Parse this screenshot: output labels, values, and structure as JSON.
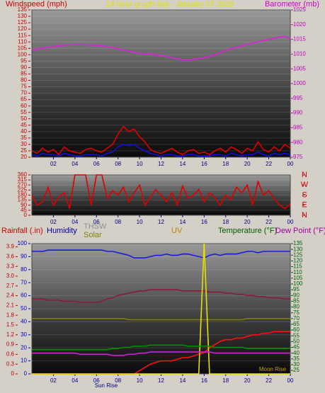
{
  "chart_data": [
    {
      "type": "line",
      "title": "24 hour graph day - January 07 2026",
      "ylabel": "Windspeed (mph)",
      "y2label": "Barometer (mb)",
      "x": [
        0,
        0.5,
        1,
        1.5,
        2,
        2.5,
        3,
        3.5,
        4,
        4.5,
        5,
        5.5,
        6,
        6.5,
        7,
        7.5,
        8,
        8.5,
        9,
        9.5,
        10,
        10.5,
        11,
        11.5,
        12,
        12.5,
        13,
        13.5,
        14,
        14.5,
        15,
        15.5,
        16,
        16.5,
        17,
        17.5,
        18,
        18.5,
        19,
        19.5,
        20,
        20.5,
        21,
        21.5,
        22,
        22.5,
        23,
        23.5,
        24
      ],
      "xlim": [
        0,
        24
      ],
      "xticks": [
        {
          "value": 2,
          "label": "02"
        },
        {
          "value": 4,
          "label": "04"
        },
        {
          "value": 6,
          "label": "06"
        },
        {
          "value": 8,
          "label": "08"
        },
        10,
        12,
        14,
        16,
        18,
        20,
        22,
        {
          "value": 24,
          "label": "00"
        }
      ],
      "ylim": [
        20,
        135
      ],
      "yticks": [
        20,
        25,
        30,
        35,
        40,
        45,
        50,
        55,
        60,
        65,
        70,
        75,
        80,
        85,
        90,
        95,
        100,
        105,
        110,
        115,
        120,
        125,
        130,
        135
      ],
      "y2lim": [
        975,
        1025
      ],
      "y2ticks": [
        975,
        980,
        985,
        990,
        995,
        1000,
        1005,
        1010,
        1015,
        1020,
        1025
      ],
      "grid": true,
      "series": [
        {
          "color": "#e00000",
          "values": [
            25,
            23,
            27,
            24,
            26,
            22,
            28,
            25,
            24,
            23,
            26,
            27,
            25,
            24,
            27,
            30,
            38,
            44,
            40,
            42,
            36,
            32,
            26,
            24,
            23,
            25,
            27,
            24,
            22,
            25,
            26,
            23,
            24,
            22,
            25,
            27,
            24,
            28,
            26,
            23,
            27,
            25,
            32,
            26,
            24,
            28,
            25,
            30,
            27
          ]
        },
        {
          "color": "#1010e0",
          "values": [
            22,
            21,
            23,
            22,
            22,
            21,
            23,
            22,
            21,
            21,
            22,
            22,
            22,
            21,
            23,
            24,
            28,
            30,
            29,
            30,
            27,
            25,
            23,
            22,
            21,
            22,
            22,
            21,
            21,
            22,
            22,
            21,
            21,
            21,
            22,
            22,
            21,
            23,
            22,
            21,
            22,
            22,
            24,
            22,
            21,
            23,
            22,
            23,
            22
          ]
        },
        {
          "color": "#e020e0",
          "axis": "y2",
          "values": [
            1011.5,
            1011.8,
            1012,
            1012.3,
            1012.6,
            1012.8,
            1013,
            1013.1,
            1013.2,
            1013.2,
            1013.1,
            1013,
            1013,
            1012.8,
            1012.5,
            1012.2,
            1011.8,
            1011.4,
            1011,
            1010.6,
            1010.2,
            1010,
            1010.2,
            1009.8,
            1009.5,
            1009.2,
            1008.8,
            1008.4,
            1008.2,
            1008.1,
            1008.2,
            1008.5,
            1008.8,
            1009.2,
            1009.8,
            1010.5,
            1011.2,
            1011.8,
            1012.3,
            1012.8,
            1013.3,
            1013.8,
            1014.2,
            1014.6,
            1015,
            1015.4,
            1015.8,
            1016,
            1015.3
          ]
        }
      ]
    },
    {
      "type": "line",
      "x": [
        0,
        0.5,
        1,
        1.5,
        2,
        2.5,
        3,
        3.5,
        4,
        4.5,
        5,
        5.5,
        6,
        6.5,
        7,
        7.5,
        8,
        8.5,
        9,
        9.5,
        10,
        10.5,
        11,
        11.5,
        12,
        12.5,
        13,
        13.5,
        14,
        14.5,
        15,
        15.5,
        16,
        16.5,
        17,
        17.5,
        18,
        18.5,
        19,
        19.5,
        20,
        20.5,
        21,
        21.5,
        22,
        22.5,
        23,
        23.5,
        24
      ],
      "xlim": [
        0,
        24
      ],
      "xticks": [
        {
          "value": 2,
          "label": "02"
        },
        {
          "value": 4,
          "label": "04"
        },
        {
          "value": 6,
          "label": "06"
        },
        {
          "value": 8,
          "label": "08"
        },
        10,
        12,
        14,
        16,
        18,
        20,
        22,
        {
          "value": 24,
          "label": "00"
        }
      ],
      "ylim": [
        0,
        360
      ],
      "yticks": [
        0,
        45,
        90,
        135,
        180,
        225,
        270,
        315,
        360
      ],
      "y2lim": [
        0,
        360
      ],
      "y2ticks": [
        {
          "value": 0,
          "label": "N"
        },
        {
          "value": 90,
          "label": "E"
        },
        {
          "value": 180,
          "label": "S"
        },
        {
          "value": 270,
          "label": "W"
        },
        {
          "value": 360,
          "label": "N"
        }
      ],
      "grid": true,
      "series": [
        {
          "color": "#e00000",
          "values": [
            180,
            90,
            120,
            250,
            90,
            160,
            200,
            60,
            360,
            360,
            360,
            90,
            360,
            360,
            150,
            220,
            180,
            250,
            120,
            200,
            270,
            90,
            160,
            230,
            180,
            120,
            200,
            90,
            260,
            150,
            180,
            230,
            120,
            200,
            160,
            90,
            180,
            140,
            250,
            200,
            270,
            90,
            300,
            180,
            220,
            150,
            90,
            60,
            100
          ]
        }
      ]
    },
    {
      "type": "line",
      "x": [
        0,
        0.5,
        1,
        1.5,
        2,
        2.5,
        3,
        3.5,
        4,
        4.5,
        5,
        5.5,
        6,
        6.5,
        7,
        7.5,
        8,
        8.5,
        9,
        9.5,
        10,
        10.5,
        11,
        11.5,
        12,
        12.5,
        13,
        13.5,
        14,
        14.5,
        15,
        15.5,
        16,
        16.5,
        17,
        17.5,
        18,
        18.5,
        19,
        19.5,
        20,
        20.5,
        21,
        21.5,
        22,
        22.5,
        23,
        23.5,
        24
      ],
      "xlim": [
        0,
        24
      ],
      "xticks": [
        {
          "value": 2,
          "label": "02"
        },
        {
          "value": 4,
          "label": "04"
        },
        {
          "value": 6,
          "label": "06"
        },
        {
          "value": 8,
          "label": "08"
        },
        10,
        12,
        14,
        16,
        18,
        20,
        22,
        {
          "value": 24,
          "label": "00"
        }
      ],
      "ylim": [
        0,
        100
      ],
      "yticks": [
        0,
        10,
        20,
        30,
        40,
        50,
        60,
        70,
        80,
        90,
        100
      ],
      "y2lim": [
        22,
        135
      ],
      "y2ticks": [
        25,
        30,
        35,
        40,
        45,
        50,
        55,
        60,
        65,
        70,
        75,
        80,
        85,
        90,
        95,
        100,
        105,
        110,
        115,
        120,
        125,
        130,
        135
      ],
      "y3lim": [
        0,
        4
      ],
      "y3ticks": [
        0,
        0.3,
        0.6,
        0.9,
        1.2,
        1.5,
        1.8,
        2.1,
        2.4,
        2.7,
        {
          "value": 3,
          "label": "3.0"
        },
        3.3,
        3.6,
        3.9
      ],
      "grid": true,
      "annotations": [
        "Sun Rise",
        "Moon Rise"
      ],
      "series": [
        {
          "name": "Rainfall (.in)",
          "color": "#ff1010",
          "axis": "y3",
          "values": [
            0,
            0,
            0,
            0,
            0,
            0,
            0,
            0,
            0,
            0,
            0,
            0,
            0,
            0,
            0,
            0,
            0,
            0,
            0,
            0,
            0.1,
            0.2,
            0.3,
            0.35,
            0.4,
            0.4,
            0.4,
            0.45,
            0.5,
            0.5,
            0.55,
            0.6,
            0.65,
            0.8,
            0.9,
            1.0,
            1.05,
            1.05,
            1.1,
            1.1,
            1.15,
            1.2,
            1.2,
            1.25,
            1.25,
            1.3,
            1.3,
            1.3,
            1.3
          ]
        },
        {
          "name": "Humidity",
          "color": "#1a1ae0",
          "values": [
            94,
            94,
            94,
            95,
            95,
            95,
            95,
            95,
            95,
            95,
            95,
            95,
            95,
            95,
            94,
            94,
            93,
            92,
            91,
            89,
            89,
            89,
            90,
            91,
            91,
            92,
            91,
            91,
            92,
            92,
            91,
            90,
            89,
            91,
            92,
            91,
            92,
            92,
            92,
            93,
            94,
            94,
            93,
            94,
            94,
            94,
            94,
            94,
            94
          ]
        },
        {
          "name": "THSW",
          "color": "#8a1a3a",
          "axis": "y2",
          "values": [
            87,
            87,
            87,
            86,
            86,
            86,
            85,
            85,
            85,
            84,
            84,
            84,
            84,
            85,
            87,
            88,
            90,
            91,
            92,
            93,
            94,
            94,
            95,
            95,
            95,
            95,
            95,
            95,
            94,
            94,
            94,
            94,
            94,
            93,
            93,
            93,
            92,
            92,
            91,
            91,
            90,
            90,
            89,
            89,
            88,
            88,
            88,
            87,
            87
          ]
        },
        {
          "name": "Solar",
          "color": "#808000",
          "axis": "y2",
          "values": [
            70,
            70,
            70,
            70,
            70,
            70,
            70,
            70,
            70,
            70,
            70,
            70,
            70,
            70,
            70,
            70,
            70,
            70,
            69,
            69,
            69,
            69,
            69,
            69,
            69,
            69,
            69,
            69,
            69,
            69,
            69,
            69,
            69,
            69,
            69,
            69,
            69,
            69,
            69,
            69,
            70,
            70,
            70,
            70,
            70,
            70,
            70,
            70,
            70
          ]
        },
        {
          "name": "UV",
          "color": "#e8e000",
          "values": [
            0,
            0,
            0,
            0,
            0,
            0,
            0,
            0,
            0,
            0,
            0,
            0,
            0,
            0,
            0,
            0,
            0,
            0,
            0,
            0,
            0,
            0,
            0,
            0,
            0,
            0,
            0,
            0,
            0,
            0,
            0,
            0,
            100,
            0,
            0,
            0,
            0,
            0,
            0,
            0,
            0,
            0,
            0,
            0,
            0,
            0,
            0,
            0,
            0
          ]
        },
        {
          "name": "Temperature (°F)",
          "color": "#009000",
          "axis": "y2",
          "values": [
            43,
            43,
            43,
            43,
            43,
            43,
            43,
            43,
            43,
            43,
            43,
            43,
            43,
            43,
            43,
            44,
            44,
            45,
            45,
            46,
            46,
            46,
            47,
            47,
            47,
            47,
            47,
            47,
            47,
            46,
            46,
            46,
            46,
            46,
            45,
            45,
            45,
            45,
            45,
            45,
            44,
            44,
            44,
            44,
            44,
            44,
            44,
            44,
            44
          ]
        },
        {
          "name": "Dew Point (°F)",
          "color": "#d020d0",
          "axis": "y2",
          "values": [
            40,
            40,
            40,
            40,
            40,
            40,
            40,
            40,
            40,
            39,
            39,
            39,
            39,
            39,
            39,
            38,
            38,
            38,
            39,
            39,
            40,
            40,
            41,
            41,
            41,
            41,
            41,
            41,
            41,
            41,
            41,
            41,
            41,
            41,
            40,
            40,
            40,
            40,
            40,
            40,
            40,
            40,
            40,
            40,
            40,
            40,
            40,
            40,
            40
          ]
        }
      ]
    }
  ]
}
